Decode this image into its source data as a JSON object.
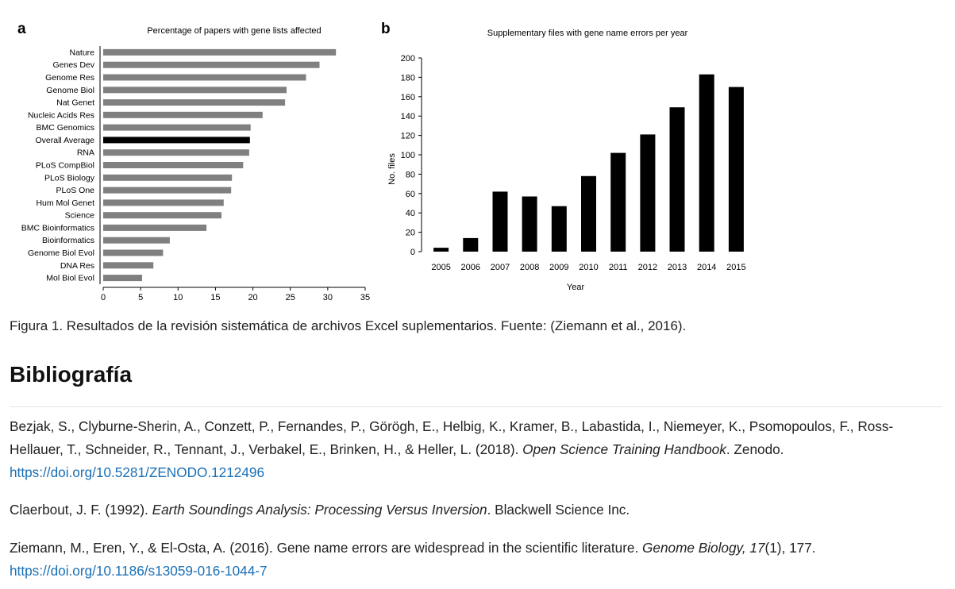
{
  "chart_data": [
    {
      "type": "bar",
      "orientation": "horizontal",
      "panel_label": "a",
      "title": "Percentage of papers with gene lists affected",
      "categories": [
        "Nature",
        "Genes Dev",
        "Genome Res",
        "Genome Biol",
        "Nat Genet",
        "Nucleic Acids Res",
        "BMC Genomics",
        "Overall Average",
        "RNA",
        "PLoS CompBiol",
        "PLoS Biology",
        "PLoS One",
        "Hum Mol Genet",
        "Science",
        "BMC Bioinformatics",
        "Bioinformatics",
        "Genome Biol Evol",
        "DNA Res",
        "Mol Biol Evol"
      ],
      "values": [
        31.1,
        28.9,
        27.1,
        24.5,
        24.3,
        21.3,
        19.7,
        19.6,
        19.5,
        18.7,
        17.2,
        17.1,
        16.1,
        15.8,
        13.8,
        8.9,
        8.0,
        6.7,
        5.2
      ],
      "highlight": "Overall Average",
      "xlim": [
        0,
        35
      ],
      "xticks": [
        0,
        5,
        10,
        15,
        20,
        25,
        30,
        35
      ],
      "xlabel": "",
      "ylabel": "",
      "colors": {
        "bar": "#808080",
        "highlight": "#000000"
      },
      "grid": false
    },
    {
      "type": "bar",
      "panel_label": "b",
      "title": "Supplementary files with gene name errors per year",
      "categories": [
        "2005",
        "2006",
        "2007",
        "2008",
        "2009",
        "2010",
        "2011",
        "2012",
        "2013",
        "2014",
        "2015"
      ],
      "values": [
        4,
        14,
        62,
        57,
        47,
        78,
        102,
        121,
        149,
        183,
        170
      ],
      "ylim": [
        0,
        200
      ],
      "yticks": [
        0,
        20,
        40,
        60,
        80,
        100,
        120,
        140,
        160,
        180,
        200
      ],
      "xlabel": "Year",
      "ylabel": "No. files",
      "colors": {
        "bar": "#000000"
      },
      "grid": false
    }
  ],
  "caption": "Figura 1. Resultados de la revisión sistemática de archivos Excel suplementarios. Fuente: (Ziemann et al., 2016).",
  "section_title": "Bibliografía",
  "references": [
    {
      "before": "Bezjak, S., Clyburne-Sherin, A., Conzett, P., Fernandes, P., Görögh, E., Helbig, K., Kramer, B., Labastida, I., Niemeyer, K., Psomopoulos, F., Ross-Hellauer, T., Schneider, R., Tennant, J., Verbakel, E., Brinken, H., & Heller, L. (2018). ",
      "italic": "Open Science Training Handbook",
      "after": ". Zenodo. ",
      "link": "https://doi.org/10.5281/ZENODO.1212496"
    },
    {
      "before": "Claerbout, J. F. (1992). ",
      "italic": "Earth Soundings Analysis: Processing Versus Inversion",
      "after": ". Blackwell Science Inc.",
      "link": ""
    },
    {
      "before": "Ziemann, M., Eren, Y., & El-Osta, A. (2016). Gene name errors are widespread in the scientific literature. ",
      "italic": "Genome Biology, 17",
      "after": "(1), 177. ",
      "link": "https://doi.org/10.1186/s13059-016-1044-7"
    }
  ]
}
